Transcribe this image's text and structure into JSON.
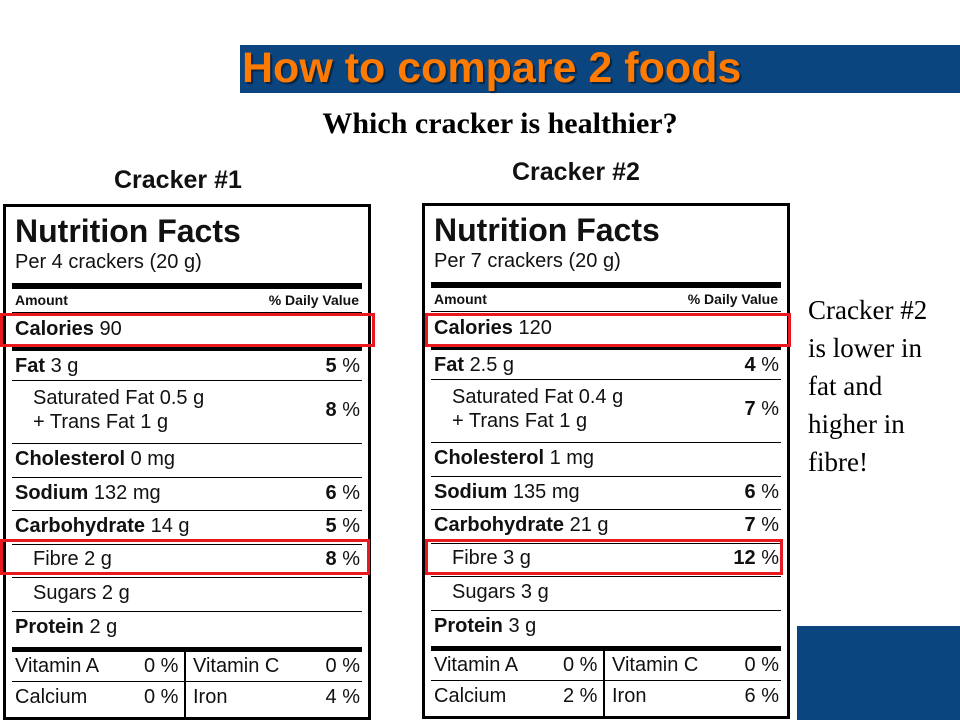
{
  "slide": {
    "title": "How to compare 2 foods",
    "subtitle": "Which cracker is healthier?",
    "note": "Cracker #2 is lower in fat and higher in fibre!"
  },
  "labels": [
    {
      "heading": "Cracker #1",
      "facts_title": "Nutrition Facts",
      "serving": "Per 4 crackers (20 g)",
      "amount_header": "Amount",
      "dv_header": "% Daily Value",
      "calories_label": "Calories",
      "calories": "90",
      "fat_label": "Fat",
      "fat": "3 g",
      "fat_dv": "5",
      "sat_fat": "Saturated Fat 0.5 g",
      "trans_fat": "+ Trans Fat 1 g",
      "sat_trans_dv": "8",
      "cholesterol_label": "Cholesterol",
      "cholesterol": "0 mg",
      "sodium_label": "Sodium",
      "sodium": "132 mg",
      "sodium_dv": "6",
      "carb_label": "Carbohydrate",
      "carb": "14 g",
      "carb_dv": "5",
      "fibre": "Fibre 2 g",
      "fibre_dv": "8",
      "sugars": "Sugars 2 g",
      "protein_label": "Protein",
      "protein": "2 g",
      "vit_a_label": "Vitamin A",
      "vit_a": "0 %",
      "vit_c_label": "Vitamin C",
      "vit_c": "0 %",
      "calcium_label": "Calcium",
      "calcium": "0 %",
      "iron_label": "Iron",
      "iron": "4 %"
    },
    {
      "heading": "Cracker #2",
      "facts_title": "Nutrition Facts",
      "serving": "Per 7 crackers (20 g)",
      "amount_header": "Amount",
      "dv_header": "% Daily Value",
      "calories_label": "Calories",
      "calories": "120",
      "fat_label": "Fat",
      "fat": "2.5 g",
      "fat_dv": "4",
      "sat_fat": "Saturated Fat 0.4 g",
      "trans_fat": "+ Trans Fat 1 g",
      "sat_trans_dv": "7",
      "cholesterol_label": "Cholesterol",
      "cholesterol": "1 mg",
      "sodium_label": "Sodium",
      "sodium": "135 mg",
      "sodium_dv": "6",
      "carb_label": "Carbohydrate",
      "carb": "21 g",
      "carb_dv": "7",
      "fibre": "Fibre 3 g",
      "fibre_dv": "12",
      "sugars": "Sugars 3 g",
      "protein_label": "Protein",
      "protein": "3 g",
      "vit_a_label": "Vitamin A",
      "vit_a": "0 %",
      "vit_c_label": "Vitamin C",
      "vit_c": "0 %",
      "calcium_label": "Calcium",
      "calcium": "2 %",
      "iron_label": "Iron",
      "iron": "6 %"
    }
  ],
  "colors": {
    "title_bar": "#0b4580",
    "title_text": "#ff7a00",
    "highlight": "#e8191f"
  }
}
